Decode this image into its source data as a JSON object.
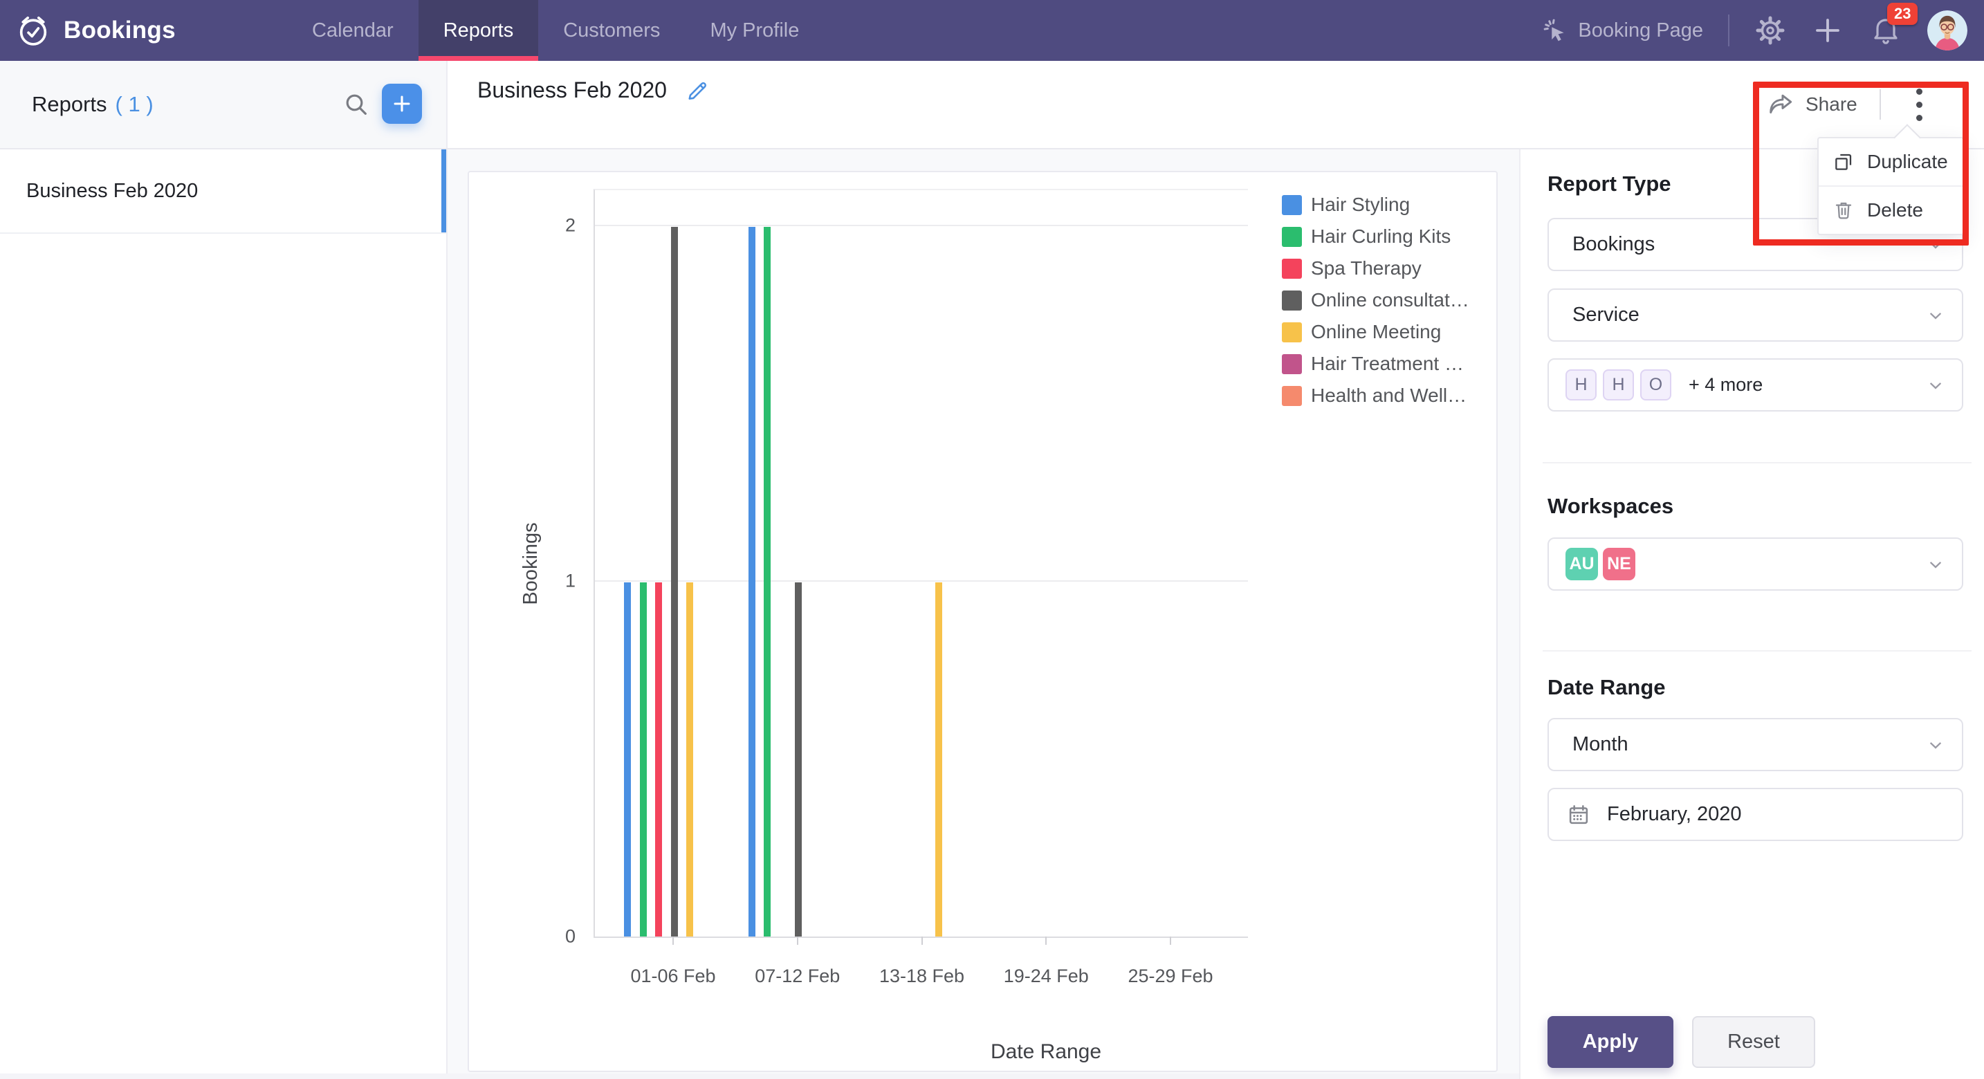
{
  "colors": {
    "navbar_bg": "#4f4b80",
    "active_tab_bg": "#434069",
    "active_tab_underline": "#f5486d",
    "accent_blue": "#4a90e2",
    "apply_purple": "#575087",
    "annotation_red": "#ee2b21",
    "badge_red": "#ef4136"
  },
  "navbar": {
    "brand": "Bookings",
    "tabs": [
      {
        "label": "Calendar",
        "active": false
      },
      {
        "label": "Reports",
        "active": true
      },
      {
        "label": "Customers",
        "active": false
      },
      {
        "label": "My Profile",
        "active": false
      }
    ],
    "booking_page_label": "Booking Page",
    "notification_count": "23"
  },
  "sidebar": {
    "title": "Reports",
    "count": "( 1 )",
    "items": [
      {
        "label": "Business Feb 2020",
        "selected": true
      }
    ]
  },
  "report_header": {
    "title": "Business Feb 2020",
    "share_label": "Share"
  },
  "context_menu": {
    "items": [
      {
        "label": "Duplicate",
        "icon": "duplicate-icon"
      },
      {
        "label": "Delete",
        "icon": "trash-icon"
      }
    ]
  },
  "chart_data": {
    "type": "bar",
    "title": "",
    "xlabel": "Date Range",
    "ylabel": "Bookings",
    "ylim": [
      0,
      2
    ],
    "yticks": [
      0,
      1,
      2
    ],
    "grid": true,
    "legend_position": "right",
    "categories": [
      "01-06 Feb",
      "07-12 Feb",
      "13-18 Feb",
      "19-24 Feb",
      "25-29 Feb"
    ],
    "series": [
      {
        "name": "Hair Styling",
        "color": "#4a90e2",
        "values": [
          1,
          2,
          0,
          0,
          0
        ]
      },
      {
        "name": "Hair Curling Kits",
        "color": "#2bbd6e",
        "values": [
          1,
          2,
          0,
          0,
          0
        ]
      },
      {
        "name": "Spa Therapy",
        "color": "#f4435c",
        "values": [
          1,
          0,
          0,
          0,
          0
        ]
      },
      {
        "name": "Online consultat…",
        "color": "#5f5f5f",
        "values": [
          2,
          1,
          0,
          0,
          0
        ]
      },
      {
        "name": "Online Meeting",
        "color": "#f7c24a",
        "values": [
          1,
          0,
          1,
          0,
          0
        ]
      },
      {
        "name": "Hair Treatment …",
        "color": "#c1548b",
        "values": [
          0,
          0,
          0,
          0,
          0
        ]
      },
      {
        "name": "Health and Well…",
        "color": "#f58a6d",
        "values": [
          0,
          0,
          0,
          0,
          0
        ]
      }
    ]
  },
  "filters": {
    "report_type_label": "Report Type",
    "report_type_value": "Bookings",
    "group_by_value": "Service",
    "service_chips": [
      "H",
      "H",
      "O"
    ],
    "service_more_label": "+ 4 more",
    "workspaces_label": "Workspaces",
    "workspace_chips": [
      {
        "label": "AU",
        "color": "#5ed1b1"
      },
      {
        "label": "NE",
        "color": "#f0708a"
      }
    ],
    "date_range_label": "Date Range",
    "period_value": "Month",
    "month_value": "February, 2020",
    "apply_label": "Apply",
    "reset_label": "Reset"
  },
  "icons": {
    "bookings-logo": "circle-with-check",
    "search-icon": "magnifier",
    "add-report-icon": "plus-in-blue-square",
    "edit-icon": "blue-pencil",
    "share-icon": "curved-share-arrow",
    "more-icon": "vertical-kebab-dots",
    "duplicate-icon": "overlapping-squares",
    "trash-icon": "trash-can",
    "settings-icon": "gear",
    "add-icon": "plus",
    "notifications-icon": "bell-with-badge",
    "booking-page-icon": "cursor-click",
    "calendar-icon": "calendar-grid",
    "chevron-down-icon": "chevron-down",
    "avatar": "user-illustration"
  }
}
